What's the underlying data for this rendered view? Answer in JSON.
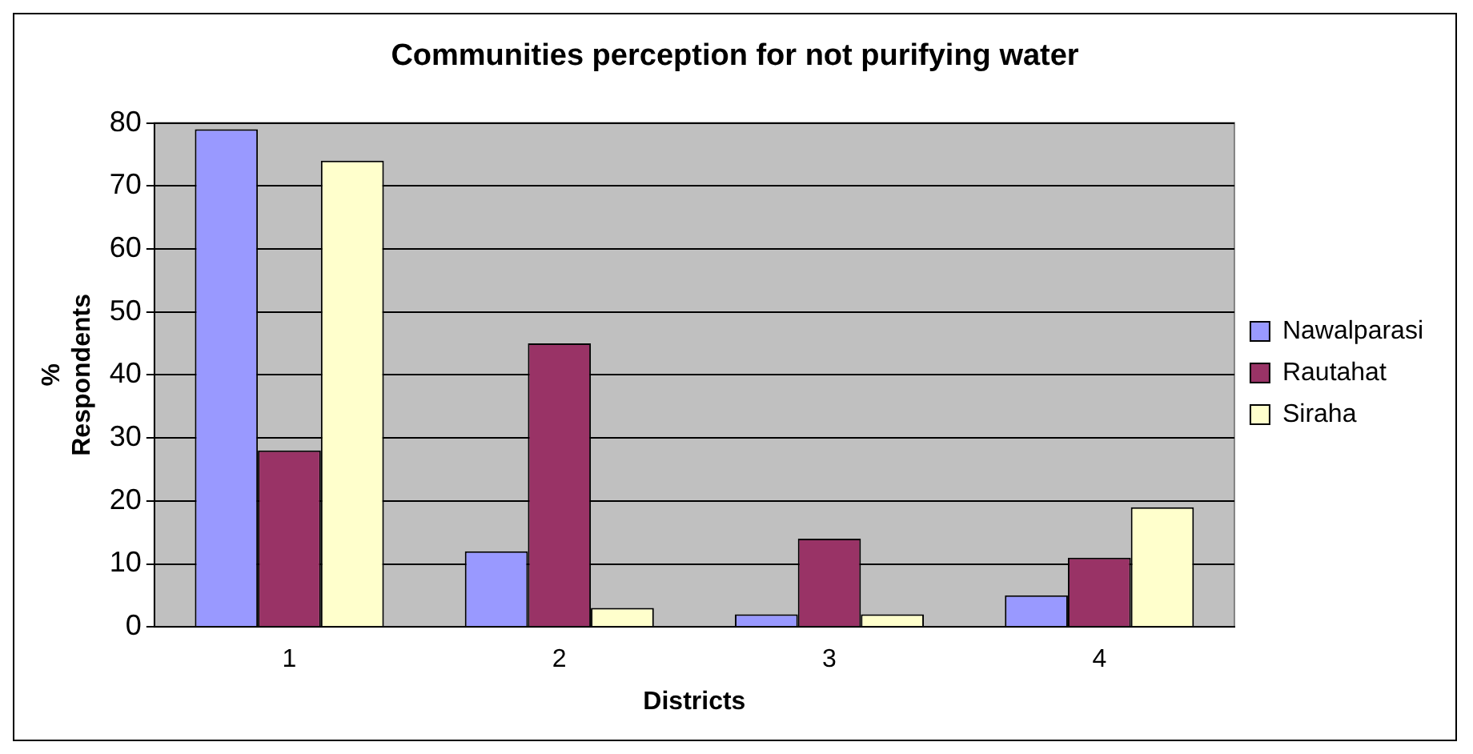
{
  "chart_data": {
    "type": "bar",
    "title": "Communities perception for not purifying water",
    "xlabel": "Districts",
    "ylabel": "% Respondents",
    "categories": [
      "1",
      "2",
      "3",
      "4"
    ],
    "series": [
      {
        "name": "Nawalparasi",
        "color": "#9999ff",
        "values": [
          79,
          12,
          2,
          5
        ]
      },
      {
        "name": "Rautahat",
        "color": "#993366",
        "values": [
          28,
          45,
          14,
          11
        ]
      },
      {
        "name": "Siraha",
        "color": "#ffffcc",
        "values": [
          74,
          3,
          2,
          19
        ]
      }
    ],
    "ylim": [
      0,
      80
    ],
    "yticks": [
      0,
      10,
      20,
      30,
      40,
      50,
      60,
      70,
      80
    ],
    "grid": "y",
    "legend": "right"
  }
}
